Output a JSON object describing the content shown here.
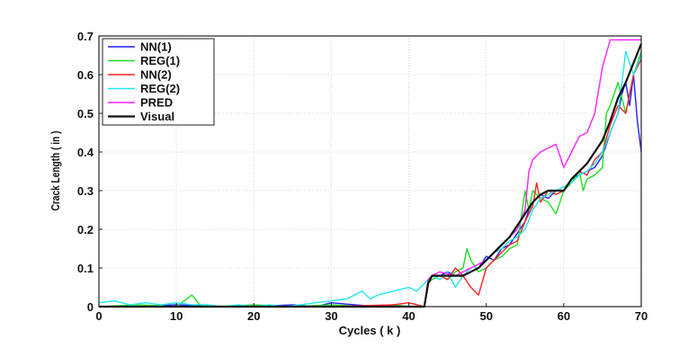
{
  "chart_data": {
    "type": "line",
    "title": "",
    "xlabel": "Cycles ( k )",
    "ylabel": "Crack Length ( in )",
    "xlim": [
      0,
      70
    ],
    "ylim": [
      0,
      0.7
    ],
    "xticks": [
      0,
      10,
      20,
      30,
      40,
      50,
      60,
      70
    ],
    "xtick_labels": [
      "0",
      "10",
      "20",
      "30",
      "40",
      "50",
      "60",
      "70"
    ],
    "yticks": [
      0,
      0.1,
      0.2,
      0.3,
      0.4,
      0.5,
      0.6,
      0.7
    ],
    "ytick_labels": [
      "0",
      "0.1",
      "0.2",
      "0.3",
      "0.4",
      "0.5",
      "0.6",
      "0.7"
    ],
    "grid": true,
    "legend_position": "top-left",
    "series": [
      {
        "name": "NN(1)",
        "color": "#1f1fff",
        "x": [
          0,
          5,
          10,
          15,
          20,
          25,
          28,
          30,
          33,
          36,
          38,
          40,
          42,
          42.5,
          43,
          44,
          45,
          46,
          47,
          48,
          49,
          50,
          51,
          52,
          53,
          54,
          55,
          55.5,
          56,
          57,
          58,
          59,
          60,
          61,
          62,
          63,
          64,
          65,
          66,
          67,
          67.5,
          68,
          68.5,
          69,
          69.5,
          70
        ],
        "y": [
          0.0,
          0.0,
          0.005,
          0.0,
          0.0,
          0.005,
          0.0,
          0.01,
          0.005,
          0.0,
          0.005,
          0.0,
          0.0,
          0.07,
          0.08,
          0.08,
          0.09,
          0.08,
          0.08,
          0.09,
          0.1,
          0.13,
          0.12,
          0.15,
          0.16,
          0.19,
          0.22,
          0.25,
          0.27,
          0.29,
          0.28,
          0.3,
          0.3,
          0.33,
          0.34,
          0.35,
          0.36,
          0.39,
          0.45,
          0.5,
          0.55,
          0.58,
          0.52,
          0.6,
          0.48,
          0.4
        ]
      },
      {
        "name": "REG(1)",
        "color": "#22dd22",
        "x": [
          0,
          5,
          10,
          12,
          13,
          15,
          20,
          25,
          30,
          35,
          38,
          40,
          42,
          42.5,
          43,
          44,
          45,
          46,
          47,
          47.5,
          48,
          49,
          50,
          51,
          52,
          53,
          54,
          55,
          55.5,
          56,
          57,
          58,
          59,
          60,
          61,
          62,
          62.5,
          63,
          64,
          65,
          65.5,
          66,
          67,
          68,
          69,
          70
        ],
        "y": [
          0.0,
          0.005,
          0.0,
          0.03,
          0.005,
          0.0,
          0.005,
          0.0,
          0.005,
          0.0,
          0.005,
          0.0,
          0.0,
          0.06,
          0.07,
          0.08,
          0.07,
          0.09,
          0.1,
          0.15,
          0.12,
          0.09,
          0.1,
          0.12,
          0.13,
          0.15,
          0.16,
          0.3,
          0.25,
          0.3,
          0.28,
          0.27,
          0.24,
          0.3,
          0.32,
          0.35,
          0.3,
          0.33,
          0.34,
          0.36,
          0.5,
          0.52,
          0.58,
          0.5,
          0.6,
          0.66
        ]
      },
      {
        "name": "NN(2)",
        "color": "#ff2020",
        "x": [
          0,
          10,
          20,
          30,
          38,
          40,
          42,
          42.5,
          43,
          44,
          45,
          46,
          47,
          48,
          49,
          50,
          51,
          52,
          53,
          54,
          55,
          56,
          56.5,
          57,
          58,
          59,
          60,
          61,
          62,
          63,
          64,
          65,
          66,
          67,
          68,
          68.5,
          69,
          70
        ],
        "y": [
          0.0,
          0.0,
          0.0,
          0.0,
          0.005,
          0.01,
          0.0,
          0.06,
          0.08,
          0.08,
          0.07,
          0.1,
          0.08,
          0.05,
          0.03,
          0.1,
          0.12,
          0.14,
          0.16,
          0.17,
          0.22,
          0.26,
          0.32,
          0.27,
          0.3,
          0.29,
          0.3,
          0.33,
          0.35,
          0.34,
          0.38,
          0.4,
          0.47,
          0.52,
          0.5,
          0.55,
          0.6,
          0.64
        ]
      },
      {
        "name": "REG(2)",
        "color": "#22e6ee",
        "x": [
          0,
          2,
          4,
          6,
          8,
          10,
          12,
          14,
          16,
          18,
          20,
          22,
          24,
          26,
          28,
          30,
          32,
          34,
          35,
          36,
          38,
          40,
          41,
          42,
          42.5,
          43,
          44,
          45,
          46,
          47,
          48,
          49,
          50,
          51,
          52,
          53,
          54,
          55,
          56,
          57,
          58,
          59,
          60,
          61,
          62,
          63,
          64,
          65,
          66,
          67,
          68,
          69,
          70
        ],
        "y": [
          0.01,
          0.015,
          0.005,
          0.01,
          0.005,
          0.01,
          0.005,
          0.005,
          0.0,
          0.005,
          0.0,
          0.005,
          0.0,
          0.005,
          0.01,
          0.015,
          0.02,
          0.04,
          0.02,
          0.03,
          0.04,
          0.05,
          0.04,
          0.06,
          0.07,
          0.08,
          0.07,
          0.09,
          0.05,
          0.08,
          0.1,
          0.11,
          0.12,
          0.14,
          0.15,
          0.17,
          0.18,
          0.2,
          0.25,
          0.28,
          0.29,
          0.3,
          0.31,
          0.32,
          0.34,
          0.35,
          0.37,
          0.4,
          0.45,
          0.5,
          0.66,
          0.6,
          0.65
        ]
      },
      {
        "name": "PRED",
        "color": "#ff22ff",
        "x": [
          0,
          10,
          20,
          30,
          40,
          42,
          42.5,
          43,
          44,
          45,
          46,
          47,
          48,
          49,
          50,
          51,
          52,
          53,
          54,
          55,
          55.5,
          56,
          57,
          58,
          59,
          60,
          61,
          62,
          63,
          64,
          65,
          66,
          67,
          68,
          69,
          70
        ],
        "y": [
          0.0,
          0.0,
          0.0,
          0.0,
          0.0,
          0.0,
          0.07,
          0.08,
          0.09,
          0.085,
          0.08,
          0.09,
          0.1,
          0.11,
          0.12,
          0.14,
          0.16,
          0.18,
          0.2,
          0.25,
          0.35,
          0.38,
          0.4,
          0.41,
          0.42,
          0.36,
          0.4,
          0.44,
          0.45,
          0.5,
          0.62,
          0.69,
          0.69,
          0.69,
          0.69,
          0.69
        ]
      },
      {
        "name": "Visual",
        "color": "#111111",
        "x": [
          0,
          10,
          20,
          30,
          40,
          42,
          42.5,
          43,
          44,
          45,
          46,
          47,
          48,
          49,
          50,
          51,
          52,
          53,
          54,
          55,
          56,
          57,
          58,
          59,
          60,
          61,
          62,
          63,
          64,
          65,
          66,
          67,
          68,
          69,
          70
        ],
        "y": [
          0.0,
          0.0,
          0.0,
          0.0,
          0.0,
          0.0,
          0.06,
          0.08,
          0.08,
          0.08,
          0.08,
          0.08,
          0.09,
          0.1,
          0.12,
          0.14,
          0.16,
          0.18,
          0.21,
          0.24,
          0.27,
          0.29,
          0.3,
          0.3,
          0.3,
          0.33,
          0.35,
          0.37,
          0.4,
          0.43,
          0.48,
          0.54,
          0.58,
          0.63,
          0.68
        ]
      }
    ]
  }
}
